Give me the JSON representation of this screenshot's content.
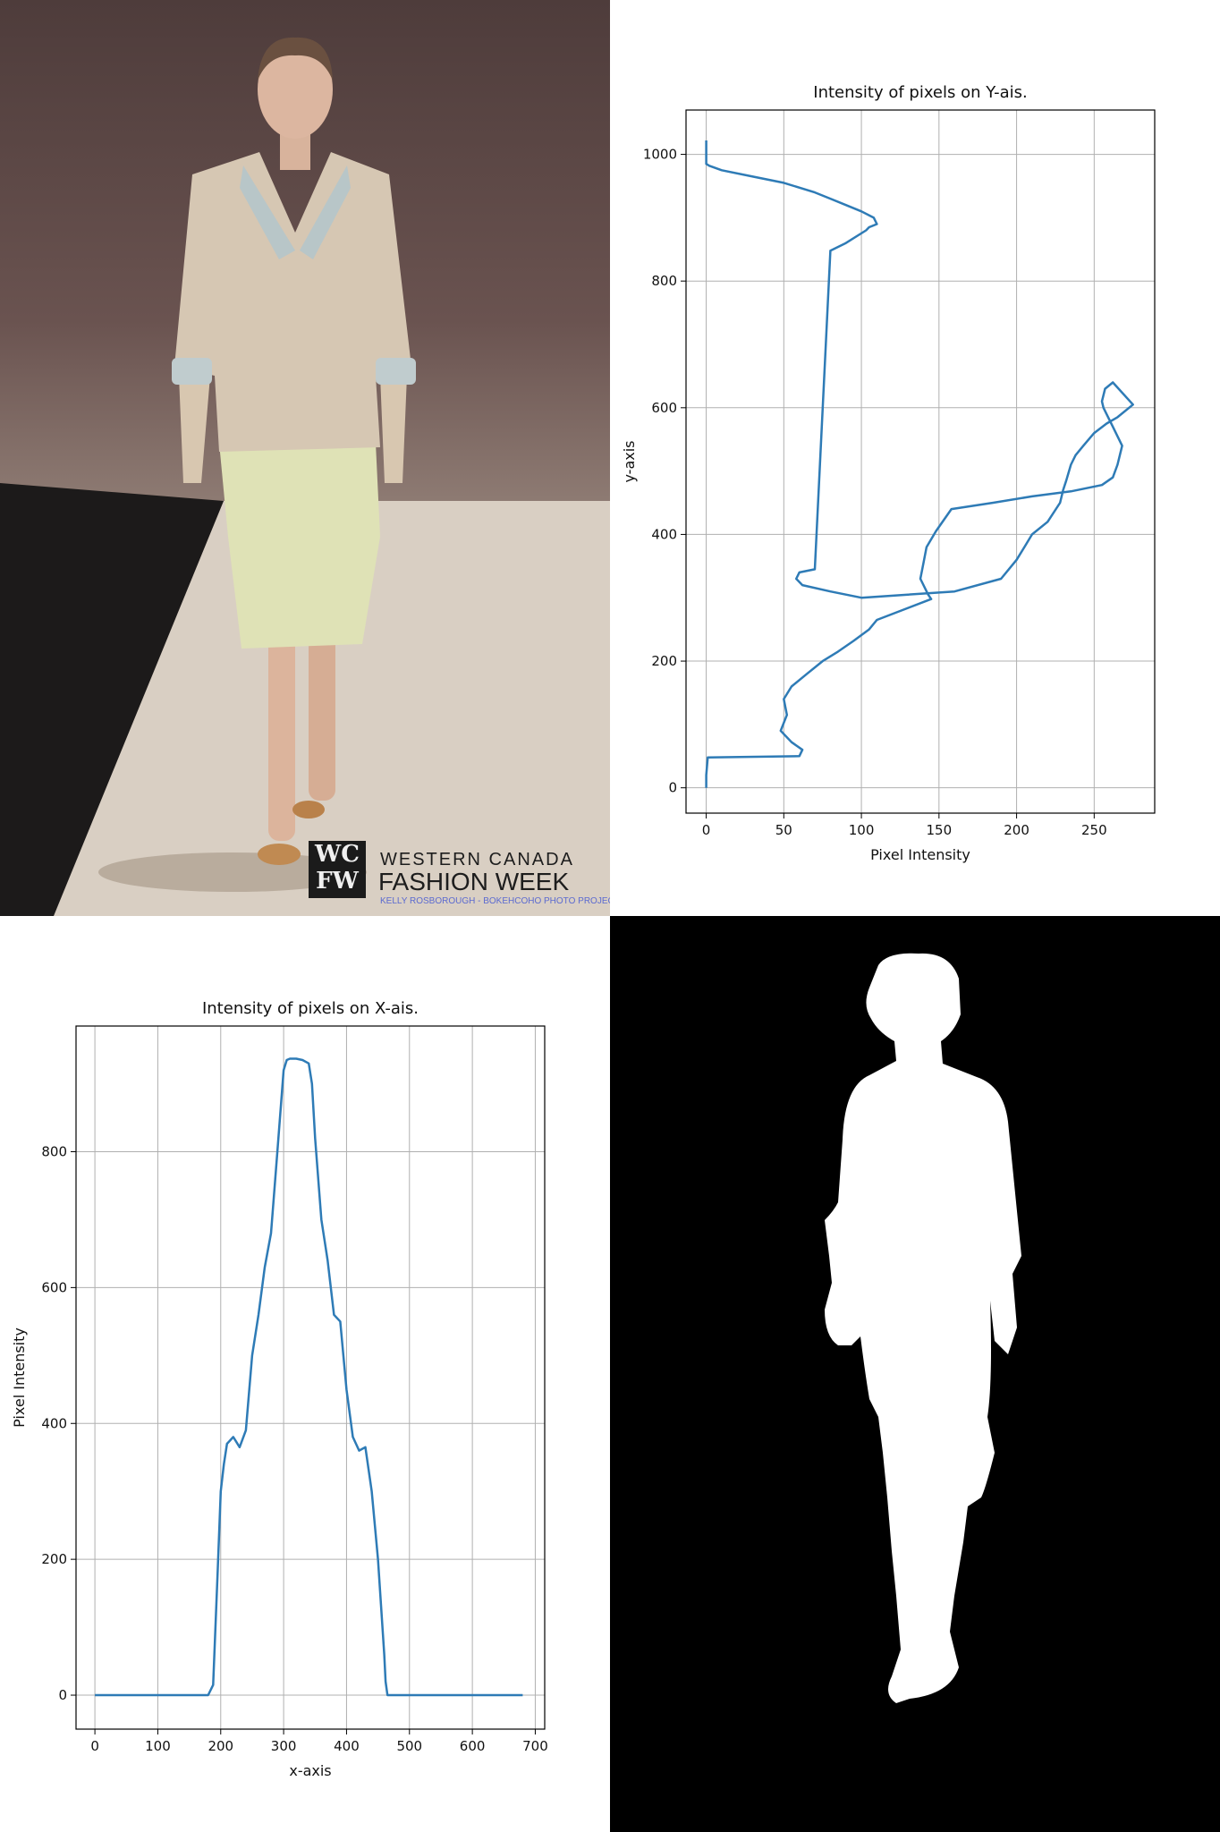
{
  "photo": {
    "logo_mark": "WC FW",
    "logo_line1": "WESTERN CANADA",
    "logo_line2": "FASHION WEEK",
    "logo_line3": "KELLY ROSBOROUGH - BOKEHCOHO PHOTO PROJECT"
  },
  "colors": {
    "line": "#2e7bb6",
    "grid": "#b0b0b0",
    "axes": "#000000"
  },
  "chart_data": [
    {
      "type": "line",
      "title": "Intensity of pixels on Y-ais.",
      "xlabel": "Pixel Intensity",
      "ylabel": "y-axis",
      "xlim": [
        -13,
        289
      ],
      "ylim": [
        -40,
        1070
      ],
      "xticks": [
        0,
        50,
        100,
        150,
        200,
        250
      ],
      "yticks": [
        0,
        200,
        400,
        600,
        800,
        1000
      ],
      "grid": true,
      "series": [
        {
          "x": [
            0,
            0,
            1,
            60,
            62,
            55,
            48,
            52,
            50,
            55,
            65,
            75,
            85,
            95,
            105,
            110,
            145,
            143,
            138,
            140,
            142,
            148,
            158,
            185,
            210,
            235,
            255,
            262,
            265,
            268,
            262,
            258,
            256,
            255,
            257,
            262,
            275,
            265,
            258,
            250,
            243,
            238,
            235,
            232,
            230,
            228,
            220,
            210,
            205,
            200,
            190,
            160,
            130,
            100,
            80,
            62,
            58,
            60,
            70,
            80,
            90,
            103,
            105,
            110,
            108,
            100,
            90,
            80,
            70,
            50,
            30,
            10,
            2,
            0,
            0
          ],
          "y": [
            0,
            20,
            48,
            50,
            60,
            72,
            90,
            115,
            140,
            160,
            180,
            200,
            215,
            232,
            250,
            265,
            298,
            305,
            330,
            355,
            380,
            405,
            440,
            450,
            460,
            468,
            478,
            490,
            510,
            540,
            570,
            590,
            600,
            610,
            630,
            640,
            605,
            585,
            575,
            560,
            540,
            525,
            510,
            485,
            470,
            450,
            420,
            400,
            380,
            360,
            330,
            310,
            305,
            300,
            310,
            320,
            330,
            340,
            345,
            848,
            860,
            880,
            885,
            890,
            900,
            910,
            920,
            930,
            940,
            955,
            965,
            975,
            982,
            985,
            1022
          ]
        }
      ]
    },
    {
      "type": "line",
      "title": "Intensity of pixels on X-ais.",
      "xlabel": "x-axis",
      "ylabel": "Pixel Intensity",
      "xlim": [
        -30,
        715
      ],
      "ylim": [
        -50,
        985
      ],
      "xticks": [
        0,
        100,
        200,
        300,
        400,
        500,
        600,
        700
      ],
      "yticks": [
        0,
        200,
        400,
        600,
        800
      ],
      "grid": true,
      "series": [
        {
          "x": [
            0,
            180,
            188,
            195,
            200,
            205,
            210,
            220,
            230,
            240,
            250,
            260,
            270,
            280,
            290,
            300,
            305,
            310,
            320,
            330,
            340,
            345,
            350,
            360,
            370,
            380,
            390,
            400,
            410,
            420,
            430,
            440,
            450,
            460,
            462,
            465,
            680
          ],
          "y": [
            0,
            0,
            15,
            180,
            300,
            340,
            370,
            380,
            365,
            390,
            500,
            560,
            630,
            680,
            800,
            920,
            935,
            937,
            937,
            935,
            930,
            900,
            820,
            700,
            640,
            560,
            550,
            450,
            380,
            360,
            365,
            300,
            200,
            60,
            20,
            0,
            0
          ]
        }
      ]
    }
  ]
}
